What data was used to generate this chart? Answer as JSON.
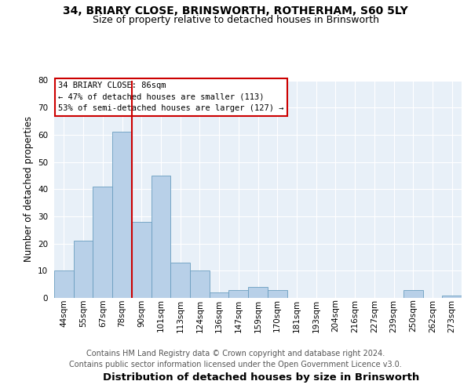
{
  "title1": "34, BRIARY CLOSE, BRINSWORTH, ROTHERHAM, S60 5LY",
  "title2": "Size of property relative to detached houses in Brinsworth",
  "xlabel": "Distribution of detached houses by size in Brinsworth",
  "ylabel": "Number of detached properties",
  "bins": [
    "44sqm",
    "55sqm",
    "67sqm",
    "78sqm",
    "90sqm",
    "101sqm",
    "113sqm",
    "124sqm",
    "136sqm",
    "147sqm",
    "159sqm",
    "170sqm",
    "181sqm",
    "193sqm",
    "204sqm",
    "216sqm",
    "227sqm",
    "239sqm",
    "250sqm",
    "262sqm",
    "273sqm"
  ],
  "bar_values": [
    10,
    21,
    41,
    61,
    28,
    45,
    13,
    10,
    2,
    3,
    4,
    3,
    0,
    0,
    0,
    0,
    0,
    0,
    3,
    0,
    1
  ],
  "bar_color": "#b8d0e8",
  "bar_edge_color": "#6a9ec0",
  "vline_color": "#cc0000",
  "annotation_text": "34 BRIARY CLOSE: 86sqm\n← 47% of detached houses are smaller (113)\n53% of semi-detached houses are larger (127) →",
  "annotation_box_edgecolor": "#cc0000",
  "footer": "Contains HM Land Registry data © Crown copyright and database right 2024.\nContains public sector information licensed under the Open Government Licence v3.0.",
  "ylim": [
    0,
    80
  ],
  "yticks": [
    0,
    10,
    20,
    30,
    40,
    50,
    60,
    70,
    80
  ],
  "plot_bg_color": "#e8f0f8",
  "title1_fontsize": 10,
  "title2_fontsize": 9,
  "xlabel_fontsize": 9.5,
  "ylabel_fontsize": 8.5,
  "annotation_fontsize": 7.5,
  "tick_fontsize": 7.5,
  "footer_fontsize": 7
}
